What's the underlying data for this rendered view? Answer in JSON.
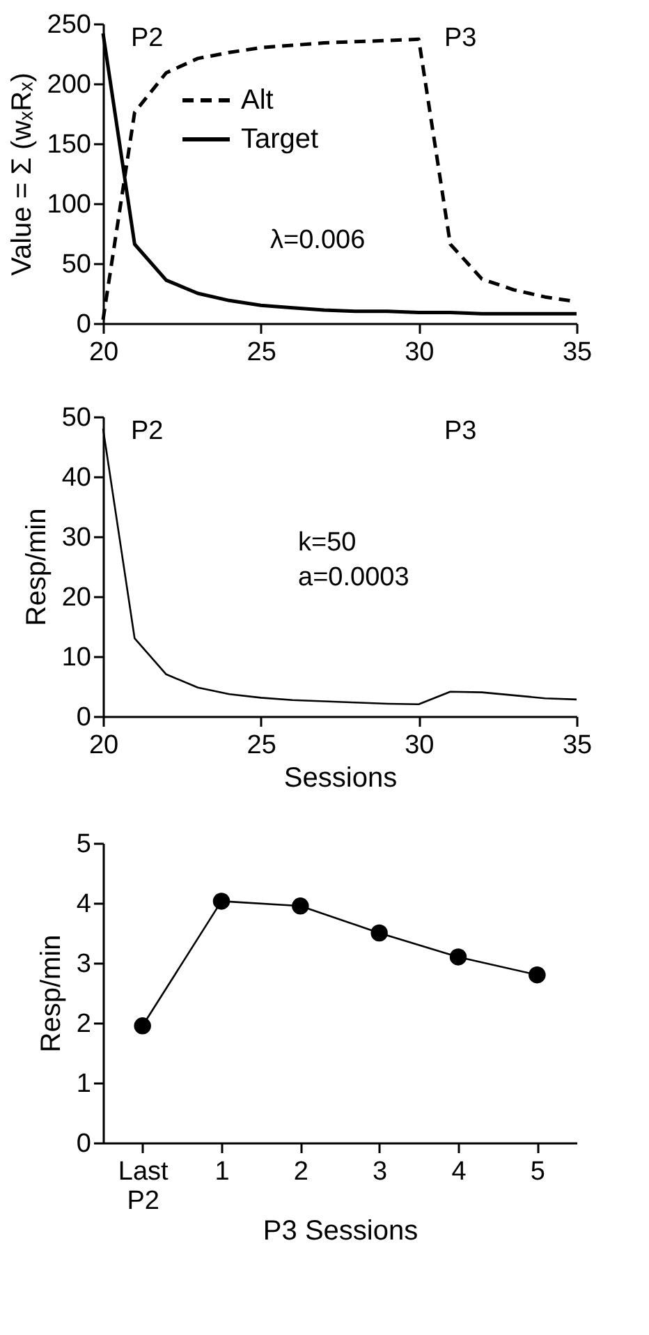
{
  "chart_data": [
    {
      "type": "line",
      "xlim": [
        20,
        35
      ],
      "xticks": [
        20,
        25,
        30,
        35
      ],
      "ylim": [
        0,
        250
      ],
      "yticks": [
        0,
        50,
        100,
        150,
        200,
        250
      ],
      "ylabel": "Value = Σ (wₓRₓ)",
      "grid": false,
      "legend": "top",
      "marker": "none",
      "x": [
        20,
        21,
        22,
        23,
        24,
        25,
        26,
        27,
        28,
        29,
        30,
        31,
        32,
        33,
        34,
        35
      ],
      "series": [
        {
          "name": "Alt",
          "color": "#000000",
          "line_style": "dashed",
          "values": [
            3,
            176,
            209,
            221,
            226,
            230,
            232,
            234,
            235,
            236,
            237,
            66,
            37,
            28,
            22,
            18
          ]
        },
        {
          "name": "Target",
          "color": "#000000",
          "line_style": "solid",
          "values": [
            242,
            66,
            36,
            25,
            19,
            15,
            13,
            11,
            10,
            10,
            9,
            9,
            8,
            8,
            8,
            8
          ]
        }
      ],
      "annotations": [
        "P2",
        "P3",
        "λ=0.006"
      ]
    },
    {
      "type": "line",
      "xlim": [
        20,
        35
      ],
      "xticks": [
        20,
        25,
        30,
        35
      ],
      "ylim": [
        0,
        50
      ],
      "yticks": [
        0,
        10,
        20,
        30,
        40,
        50
      ],
      "xlabel": "Sessions",
      "ylabel": "Resp/min",
      "grid": false,
      "marker": "none",
      "x": [
        20,
        21,
        22,
        23,
        24,
        25,
        26,
        27,
        28,
        29,
        30,
        31,
        32,
        33,
        34,
        35
      ],
      "series": [
        {
          "color": "#000000",
          "line_style": "solid",
          "values": [
            48,
            13,
            7,
            4.8,
            3.7,
            3.1,
            2.7,
            2.5,
            2.3,
            2.1,
            2.0,
            4.1,
            4.0,
            3.5,
            3.0,
            2.8
          ]
        }
      ],
      "annotations": [
        "P2",
        "P3",
        "k=50",
        "a=0.0003"
      ]
    },
    {
      "type": "line",
      "categories": [
        "Last P2",
        "1",
        "2",
        "3",
        "4",
        "5"
      ],
      "ylim": [
        0,
        5
      ],
      "yticks": [
        0,
        1,
        2,
        3,
        4,
        5
      ],
      "xlabel": "P3 Sessions",
      "ylabel": "Resp/min",
      "grid": false,
      "marker": "circle",
      "series": [
        {
          "color": "#000000",
          "line_style": "solid",
          "values": [
            1.95,
            4.03,
            3.95,
            3.5,
            3.1,
            2.8
          ]
        }
      ]
    }
  ]
}
